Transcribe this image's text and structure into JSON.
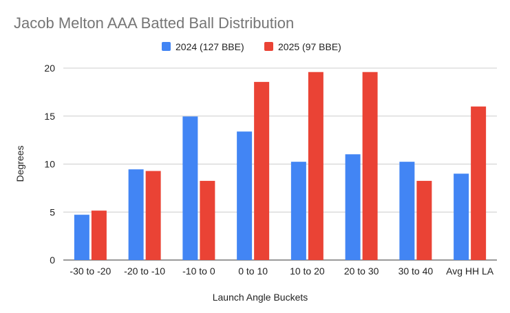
{
  "chart_data": {
    "type": "bar",
    "title": "Jacob Melton AAA Batted Ball Distribution",
    "xlabel": "Launch Angle Buckets",
    "ylabel": "Degrees",
    "ylim": [
      0,
      20
    ],
    "yticks": [
      0,
      5,
      10,
      15,
      20
    ],
    "grid": true,
    "legend": "top",
    "categories": [
      "-30 to -20",
      "-20 to -10",
      "-10 to 0",
      "0 to 10",
      "10 to 20",
      "20 to 30",
      "30 to 40",
      "Avg HH LA"
    ],
    "series": [
      {
        "name": "2024 (127 BBE)",
        "color": "#4285f4",
        "values": [
          4.72,
          9.45,
          14.96,
          13.39,
          10.24,
          11.02,
          10.24,
          9.0
        ]
      },
      {
        "name": "2025 (97 BBE)",
        "color": "#ea4335",
        "values": [
          5.15,
          9.28,
          8.25,
          18.56,
          19.59,
          19.59,
          8.25,
          16.0
        ]
      }
    ]
  }
}
